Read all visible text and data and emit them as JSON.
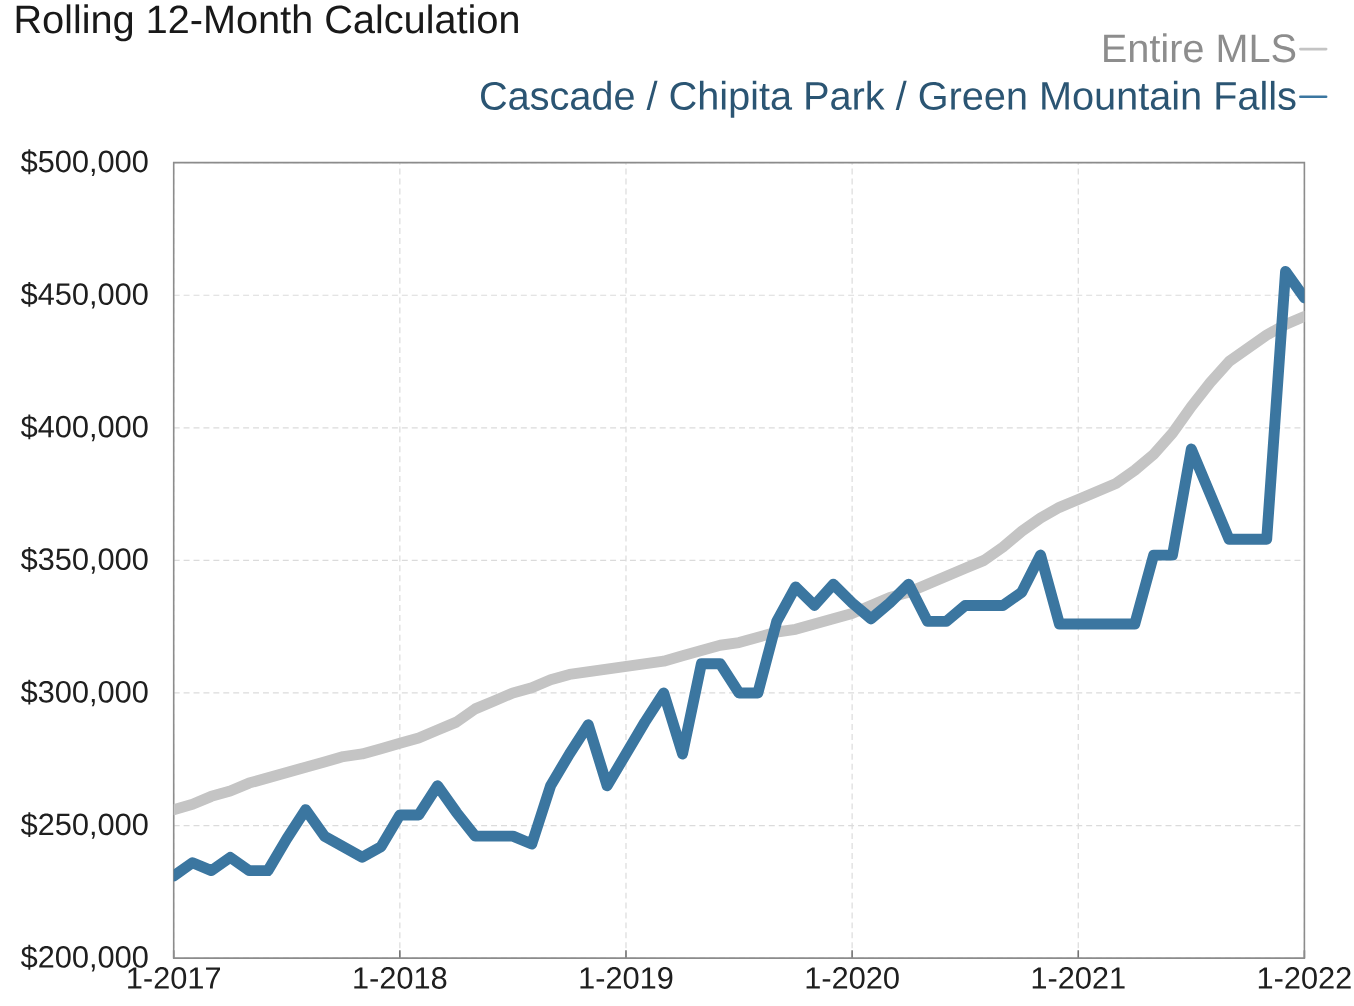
{
  "chart_data": {
    "type": "line",
    "title": "Rolling 12-Month Calculation",
    "x": [
      "2017-01",
      "2017-02",
      "2017-03",
      "2017-04",
      "2017-05",
      "2017-06",
      "2017-07",
      "2017-08",
      "2017-09",
      "2017-10",
      "2017-11",
      "2017-12",
      "2018-01",
      "2018-02",
      "2018-03",
      "2018-04",
      "2018-05",
      "2018-06",
      "2018-07",
      "2018-08",
      "2018-09",
      "2018-10",
      "2018-11",
      "2018-12",
      "2019-01",
      "2019-02",
      "2019-03",
      "2019-04",
      "2019-05",
      "2019-06",
      "2019-07",
      "2019-08",
      "2019-09",
      "2019-10",
      "2019-11",
      "2019-12",
      "2020-01",
      "2020-02",
      "2020-03",
      "2020-04",
      "2020-05",
      "2020-06",
      "2020-07",
      "2020-08",
      "2020-09",
      "2020-10",
      "2020-11",
      "2020-12",
      "2021-01",
      "2021-02",
      "2021-03",
      "2021-04",
      "2021-05",
      "2021-06",
      "2021-07",
      "2021-08",
      "2021-09",
      "2021-10",
      "2021-11",
      "2021-12",
      "2022-01"
    ],
    "series": [
      {
        "name": "Entire MLS",
        "color": "#c4c4c4",
        "values": [
          256000,
          258000,
          261000,
          263000,
          266000,
          268000,
          270000,
          272000,
          274000,
          276000,
          277000,
          279000,
          281000,
          283000,
          286000,
          289000,
          294000,
          297000,
          300000,
          302000,
          305000,
          307000,
          308000,
          309000,
          310000,
          311000,
          312000,
          314000,
          316000,
          318000,
          319000,
          321000,
          323000,
          324000,
          326000,
          328000,
          330000,
          333000,
          336000,
          338000,
          341000,
          344000,
          347000,
          350000,
          355000,
          361000,
          366000,
          370000,
          373000,
          376000,
          379000,
          384000,
          390000,
          398000,
          408000,
          417000,
          425000,
          430000,
          435000,
          439000,
          442000
        ]
      },
      {
        "name": "Cascade / Chipita Park / Green Mountain Falls",
        "color": "#3b76a0",
        "values": [
          231000,
          236000,
          233000,
          238000,
          233000,
          233000,
          245000,
          256000,
          246000,
          242000,
          238000,
          242000,
          254000,
          254000,
          265000,
          255000,
          246000,
          246000,
          246000,
          243000,
          265000,
          277000,
          288000,
          265000,
          277000,
          289000,
          300000,
          277000,
          311000,
          311000,
          300000,
          300000,
          327000,
          340000,
          333000,
          341000,
          334000,
          328000,
          334000,
          341000,
          327000,
          327000,
          333000,
          333000,
          333000,
          338000,
          352000,
          326000,
          326000,
          326000,
          326000,
          326000,
          352000,
          352000,
          392000,
          375000,
          358000,
          358000,
          358000,
          459000,
          449000
        ]
      }
    ],
    "xlim": [
      "2017-01",
      "2022-01"
    ],
    "xticks": [
      {
        "value": "2017-01",
        "label": "1-2017"
      },
      {
        "value": "2018-01",
        "label": "1-2018"
      },
      {
        "value": "2019-01",
        "label": "1-2019"
      },
      {
        "value": "2020-01",
        "label": "1-2020"
      },
      {
        "value": "2021-01",
        "label": "1-2021"
      },
      {
        "value": "2022-01",
        "label": "1-2022"
      }
    ],
    "ylim": [
      200000,
      500000
    ],
    "yticks": [
      {
        "value": 200000,
        "label": "$200,000"
      },
      {
        "value": 250000,
        "label": "$250,000"
      },
      {
        "value": 300000,
        "label": "$300,000"
      },
      {
        "value": 350000,
        "label": "$350,000"
      },
      {
        "value": 400000,
        "label": "$400,000"
      },
      {
        "value": 450000,
        "label": "$450,000"
      },
      {
        "value": 500000,
        "label": "$500,000"
      }
    ],
    "grid": true,
    "legend": "top right"
  }
}
